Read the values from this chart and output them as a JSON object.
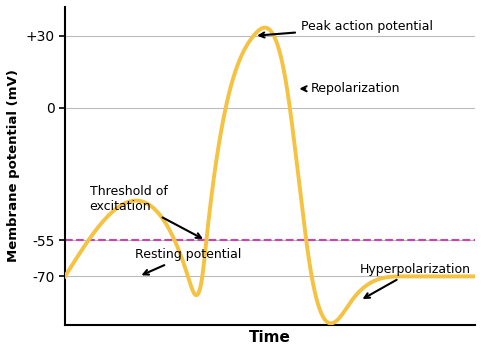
{
  "xlabel": "Time",
  "ylabel": "Membrane potential (mV)",
  "yticks": [
    -70,
    -55,
    0,
    30
  ],
  "ytick_labels": [
    "-70",
    "-55",
    "0",
    "+30"
  ],
  "line_color": "#F5C242",
  "line_width": 2.8,
  "dashed_line_y": -55,
  "dashed_color": "#CC44AA",
  "background_color": "#ffffff",
  "grid_color": "#bbbbbb",
  "xlim": [
    0,
    1
  ],
  "ylim": [
    -90,
    42
  ],
  "t_points": [
    0.0,
    0.3,
    0.335,
    0.345,
    0.46,
    0.54,
    0.6,
    0.7,
    0.83,
    1.0
  ],
  "v_points": [
    -70,
    -70,
    -70,
    -55,
    30,
    10,
    -68,
    -80,
    -70,
    -70
  ]
}
